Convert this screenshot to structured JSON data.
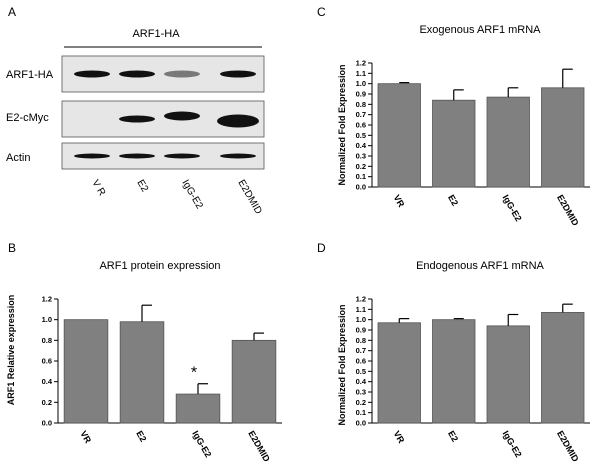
{
  "panel_labels": [
    "A",
    "B",
    "C",
    "D"
  ],
  "blot": {
    "header": "ARF1-HA",
    "rows": [
      {
        "label": "ARF1-HA",
        "bands": [
          1.0,
          1.0,
          0.35,
          1.0
        ]
      },
      {
        "label": "E2-cMyc",
        "bands": [
          0.0,
          1.0,
          1.0,
          1.0
        ]
      },
      {
        "label": "Actin",
        "bands": [
          1.0,
          1.0,
          1.0,
          1.0
        ]
      }
    ],
    "lanes": [
      "V R",
      "E2",
      "IgG-E2",
      "E2DMID"
    ]
  },
  "chart_data": [
    {
      "id": "B",
      "type": "bar",
      "title": "ARF1 protein expression",
      "ylabel": "ARF1 Relative expression",
      "xlabel": "",
      "categories": [
        "VR",
        "E2",
        "IgG-E2",
        "E2DMID"
      ],
      "values": [
        1.0,
        0.98,
        0.28,
        0.8
      ],
      "errors": [
        0.0,
        0.16,
        0.1,
        0.07
      ],
      "ylim": [
        0,
        1.2
      ],
      "yticks": [
        "0.0",
        "0.2",
        "0.4",
        "0.6",
        "0.8",
        "1.0",
        "1.2"
      ],
      "annotations": [
        {
          "category": "IgG-E2",
          "text": "*"
        }
      ],
      "bar_color": "#808080"
    },
    {
      "id": "C",
      "type": "bar",
      "title": "Exogenous ARF1 mRNA",
      "ylabel": "Normalized Fold Expression",
      "xlabel": "",
      "categories": [
        "VR",
        "E2",
        "IgG-E2",
        "E2DMID"
      ],
      "values": [
        1.0,
        0.84,
        0.87,
        0.96
      ],
      "errors": [
        0.01,
        0.1,
        0.09,
        0.18
      ],
      "ylim": [
        0,
        1.2
      ],
      "yticks": [
        "0.0",
        "0.1",
        "0.2",
        "0.3",
        "0.4",
        "0.5",
        "0.6",
        "0.7",
        "0.8",
        "0.9",
        "1.0",
        "1.1",
        "1.2"
      ],
      "annotations": [],
      "bar_color": "#808080"
    },
    {
      "id": "D",
      "type": "bar",
      "title": "Endogenous ARF1 mRNA",
      "ylabel": "Normalized Fold Expression",
      "xlabel": "",
      "categories": [
        "VR",
        "E2",
        "IgG-E2",
        "E2DMID"
      ],
      "values": [
        0.97,
        1.0,
        0.94,
        1.07
      ],
      "errors": [
        0.04,
        0.01,
        0.11,
        0.08
      ],
      "ylim": [
        0,
        1.2
      ],
      "yticks": [
        "0.0",
        "0.1",
        "0.2",
        "0.3",
        "0.4",
        "0.5",
        "0.6",
        "0.7",
        "0.8",
        "0.9",
        "1.0",
        "1.1",
        "1.2"
      ],
      "annotations": [],
      "bar_color": "#808080"
    }
  ]
}
